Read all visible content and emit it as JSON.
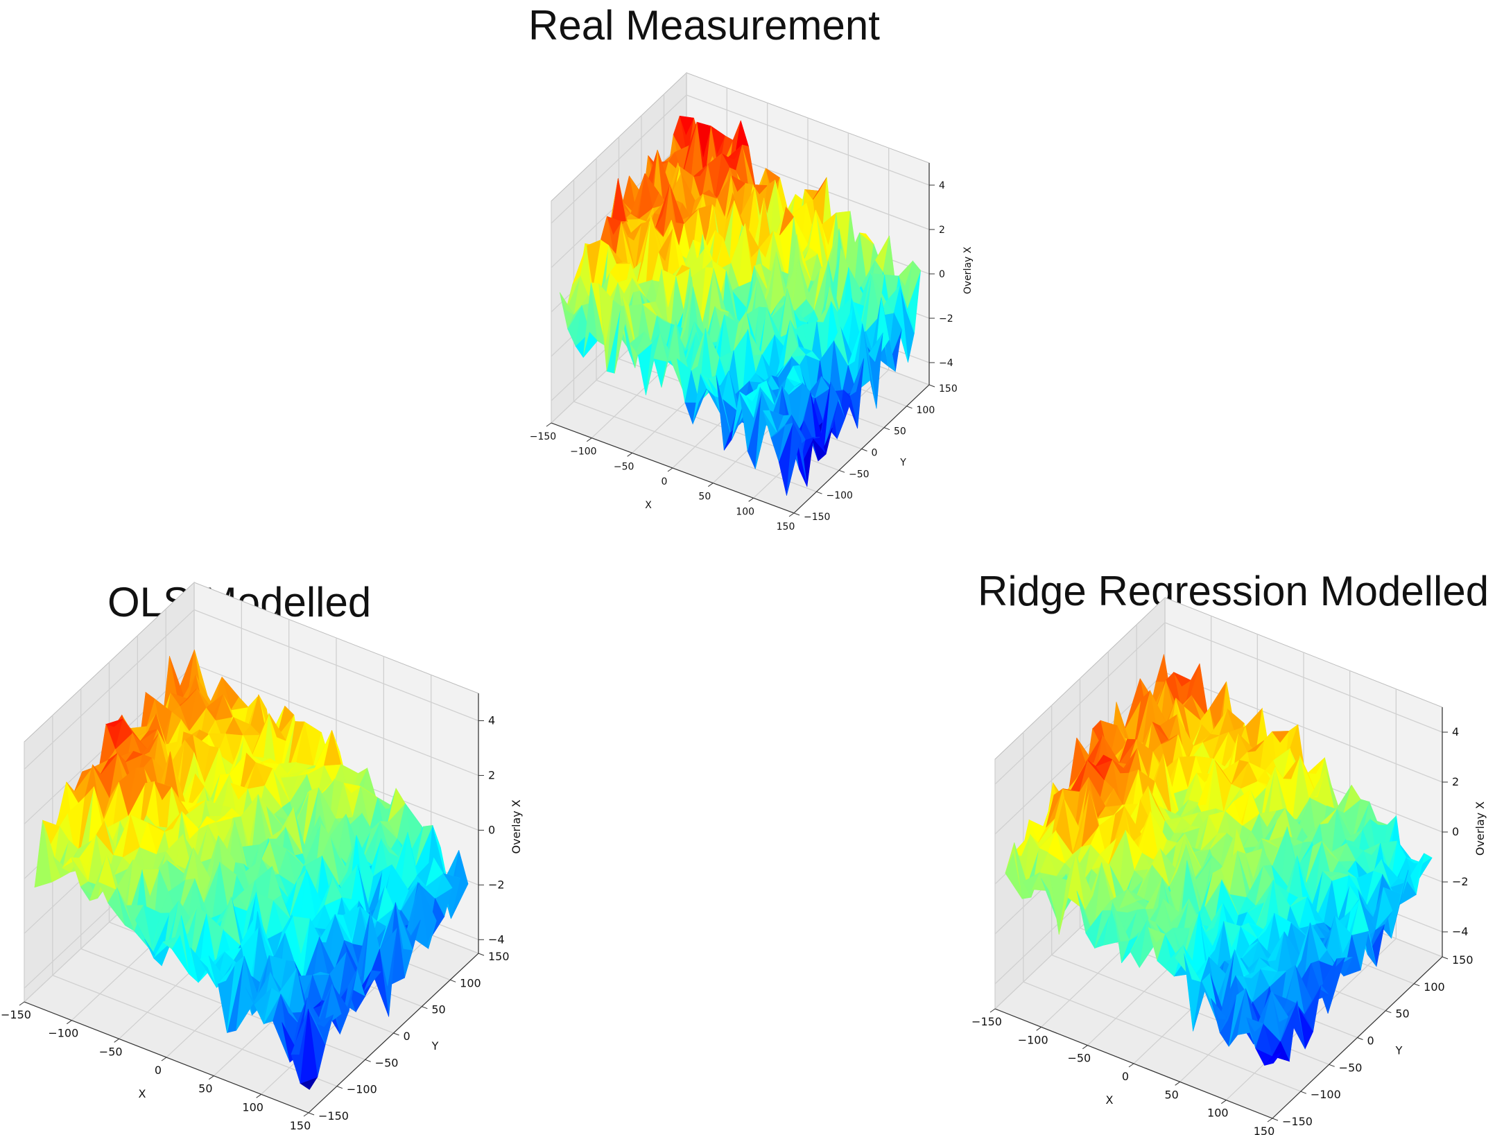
{
  "colors": {
    "pane_back": "#f2f2f2",
    "pane_left": "#e6e6e6",
    "pane_floor": "#ececec",
    "grid": "#d0d0d0",
    "edge": "#bdbdbd",
    "text": "#111111"
  },
  "chart_data": [
    {
      "id": "real",
      "type": "surface3d",
      "colormap": "jet",
      "title": "Real Measurement",
      "xlabel": "X",
      "ylabel": "Y",
      "zlabel": "Overlay X",
      "xlim": [
        -150,
        150
      ],
      "ylim": [
        -150,
        150
      ],
      "zlim": [
        -5,
        5
      ],
      "xticks": [
        -150,
        -100,
        -50,
        0,
        50,
        100,
        150
      ],
      "yticks": [
        -150,
        -100,
        -50,
        0,
        50,
        100,
        150
      ],
      "zticks": [
        -4,
        -2,
        0,
        2,
        4
      ],
      "xtick_labels": [
        "−150",
        "−100",
        "−50",
        "0",
        "50",
        "100",
        "150"
      ],
      "ytick_labels": [
        "−150",
        "−100",
        "−50",
        "0",
        "50",
        "100",
        "150"
      ],
      "ztick_labels": [
        "−4",
        "−2",
        "0",
        "2",
        "4"
      ],
      "surface": {
        "x_range": [
          -145,
          145
        ],
        "y_range": [
          -140,
          140
        ],
        "z_min": -4.6,
        "z_max": 4.3,
        "trend_x": -1.9,
        "trend_y": 1.3,
        "noise": 1.6,
        "hotspot": [
          -120,
          -20,
          1.2
        ]
      }
    },
    {
      "id": "ols",
      "type": "surface3d",
      "colormap": "jet",
      "title": "OLS Modelled",
      "xlabel": "X",
      "ylabel": "Y",
      "zlabel": "Overlay X",
      "xlim": [
        -150,
        150
      ],
      "ylim": [
        -150,
        150
      ],
      "zlim": [
        -4.5,
        5
      ],
      "xticks": [
        -150,
        -100,
        -50,
        0,
        50,
        100,
        150
      ],
      "yticks": [
        -150,
        -100,
        -50,
        0,
        50,
        100,
        150
      ],
      "zticks": [
        -4,
        -2,
        0,
        2,
        4
      ],
      "xtick_labels": [
        "−150",
        "−100",
        "−50",
        "0",
        "50",
        "100",
        "150"
      ],
      "ytick_labels": [
        "−150",
        "−100",
        "−50",
        "0",
        "50",
        "100",
        "150"
      ],
      "ztick_labels": [
        "−4",
        "−2",
        "0",
        "2",
        "4"
      ],
      "surface": {
        "x_range": [
          -145,
          145
        ],
        "y_range": [
          -140,
          140
        ],
        "z_min": -4.2,
        "z_max": 4.2,
        "trend_x": -1.9,
        "trend_y": 0.9,
        "noise": 1.1,
        "hotspot": [
          -120,
          -30,
          1.6
        ]
      }
    },
    {
      "id": "ridge",
      "type": "surface3d",
      "colormap": "jet",
      "title": "Ridge Regression Modelled",
      "xlabel": "X",
      "ylabel": "Y",
      "zlabel": "Overlay X",
      "xlim": [
        -150,
        150
      ],
      "ylim": [
        -150,
        150
      ],
      "zlim": [
        -5,
        5
      ],
      "xticks": [
        -150,
        -100,
        -50,
        0,
        50,
        100,
        150
      ],
      "yticks": [
        -150,
        -100,
        -50,
        0,
        50,
        100,
        150
      ],
      "zticks": [
        -4,
        -2,
        0,
        2,
        4
      ],
      "xtick_labels": [
        "−150",
        "−100",
        "−50",
        "0",
        "50",
        "100",
        "150"
      ],
      "ytick_labels": [
        "−150",
        "−100",
        "−50",
        "0",
        "50",
        "100",
        "150"
      ],
      "ztick_labels": [
        "−4",
        "−2",
        "0",
        "2",
        "4"
      ],
      "surface": {
        "x_range": [
          -145,
          145
        ],
        "y_range": [
          -140,
          140
        ],
        "z_min": -4.2,
        "z_max": 4.0,
        "trend_x": -1.8,
        "trend_y": 0.9,
        "noise": 1.1,
        "hotspot": [
          -115,
          -30,
          1.4
        ]
      }
    }
  ]
}
